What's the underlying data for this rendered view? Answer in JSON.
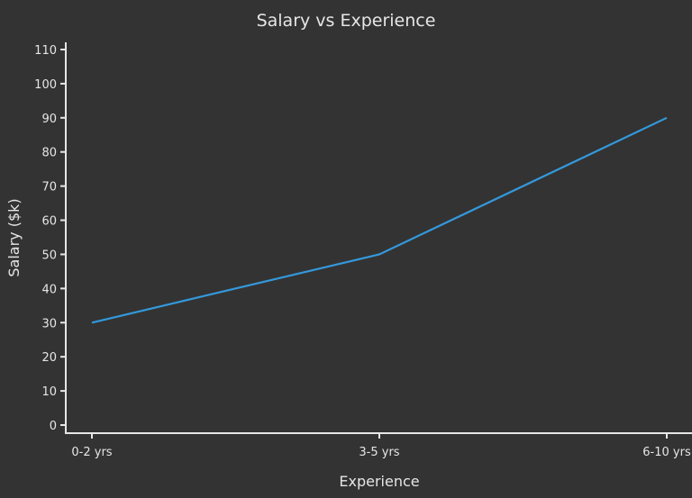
{
  "chart_data": {
    "type": "line",
    "title": "Salary vs Experience",
    "xlabel": "Experience",
    "ylabel": "Salary ($k)",
    "categories": [
      "0-2 yrs",
      "3-5 yrs",
      "6-10 yrs"
    ],
    "values": [
      30,
      50,
      90
    ],
    "ylim": [
      0,
      110
    ],
    "yticks": [
      0,
      10,
      20,
      30,
      40,
      50,
      60,
      70,
      80,
      90,
      100,
      110
    ],
    "grid": false,
    "line_color": "#3498db",
    "background": "#333333"
  }
}
